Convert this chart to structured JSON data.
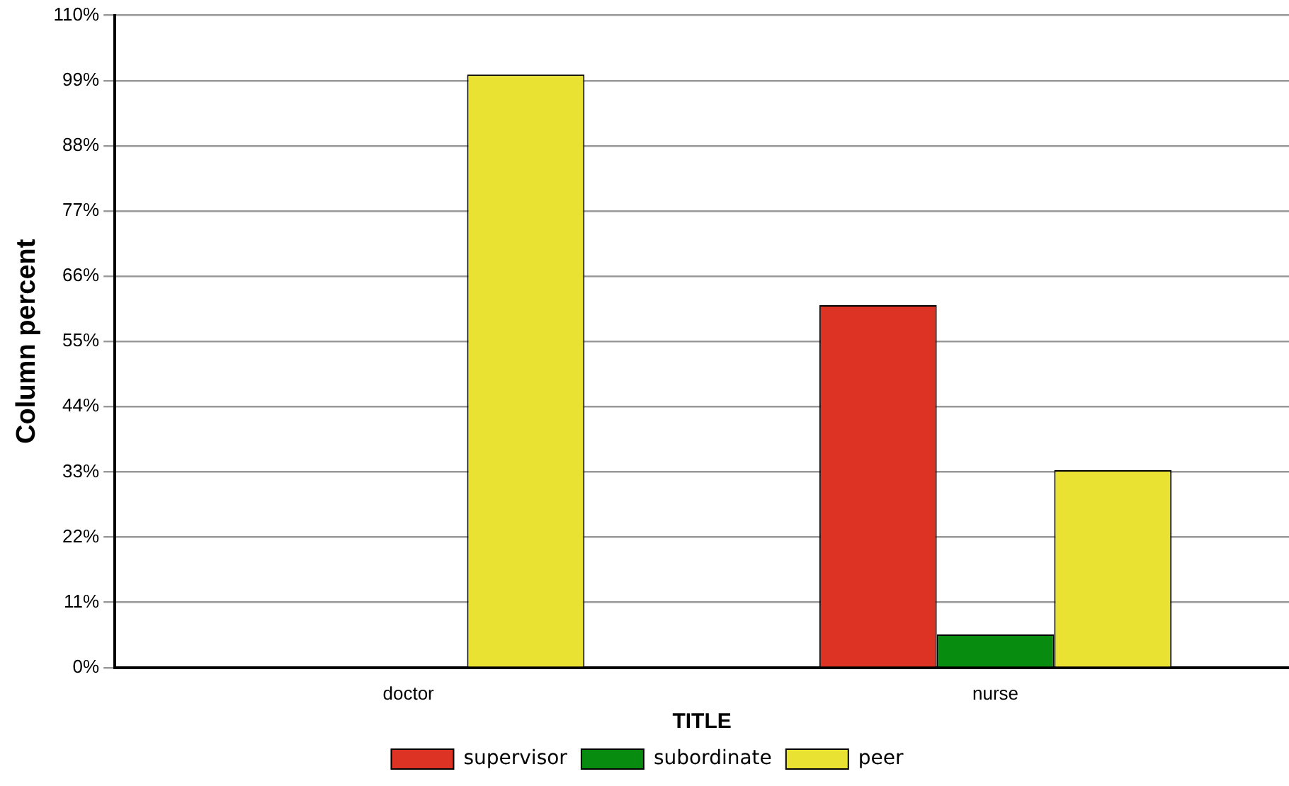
{
  "chart_data": {
    "type": "bar",
    "xlabel": "TITLE",
    "ylabel": "Column percent",
    "categories": [
      "doctor",
      "nurse"
    ],
    "series": [
      {
        "name": "supervisor",
        "color": "#dd3324",
        "values": [
          0,
          61.1
        ]
      },
      {
        "name": "subordinate",
        "color": "#088c10",
        "values": [
          0,
          5.6
        ]
      },
      {
        "name": "peer",
        "color": "#e9e233",
        "values": [
          100,
          33.3
        ]
      }
    ],
    "ylim": [
      0,
      110
    ],
    "yticks": [
      {
        "value": 0,
        "label": "0%"
      },
      {
        "value": 11,
        "label": "11%"
      },
      {
        "value": 22,
        "label": "22%"
      },
      {
        "value": 33,
        "label": "33%"
      },
      {
        "value": 44,
        "label": "44%"
      },
      {
        "value": 55,
        "label": "55%"
      },
      {
        "value": 66,
        "label": "66%"
      },
      {
        "value": 77,
        "label": "77%"
      },
      {
        "value": 88,
        "label": "88%"
      },
      {
        "value": 99,
        "label": "99%"
      },
      {
        "value": 110,
        "label": "110%"
      }
    ],
    "grid": "y",
    "legend": "bottom"
  }
}
